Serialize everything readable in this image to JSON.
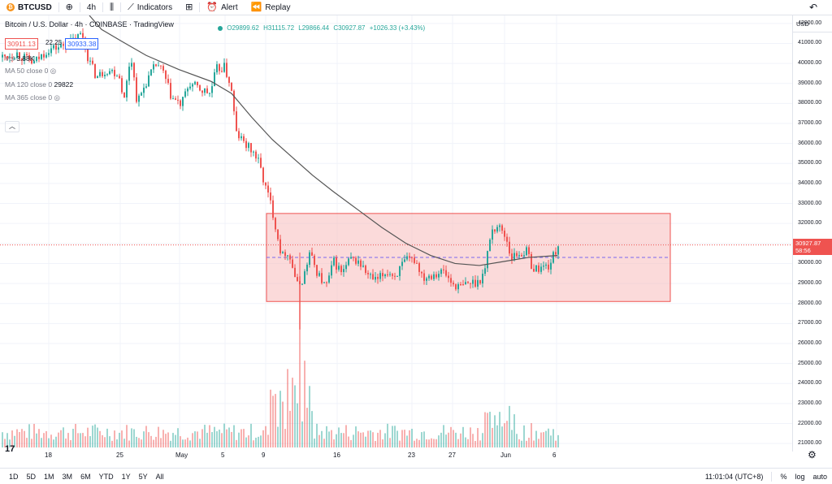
{
  "toolbar": {
    "coin_glyph": "₿",
    "symbol": "BTCUSD",
    "add_icon": "plus-circle-icon",
    "interval": "4h",
    "chart_style_icon": "candles-icon",
    "indicators": "Indicators",
    "layout_icon": "grid-icon",
    "alert": "Alert",
    "replay": "Replay"
  },
  "legend": {
    "title": "Bitcoin / U.S. Dollar · 4h · COINBASE · TradingView",
    "open": "O29899.62",
    "high": "H31115.72",
    "low": "L29866.44",
    "close": "C30927.87",
    "change": "+1026.33 (+3.43%)",
    "sell_price": "30911.13",
    "spread": "22.25",
    "buy_price": "30933.38",
    "vol_label": "Vol",
    "vol_value": "3.88K",
    "ma50": "MA 50 close 0",
    "ma120": "MA 120 close 0",
    "ma120_value": "29822",
    "ma365": "MA 365 close 0"
  },
  "price_axis": {
    "currency": "USD",
    "labels": [
      "42000.00",
      "41000.00",
      "40000.00",
      "39000.00",
      "38000.00",
      "37000.00",
      "36000.00",
      "35000.00",
      "34000.00",
      "33000.00",
      "32000.00",
      "31000.00",
      "30000.00",
      "29000.00",
      "28000.00",
      "27000.00",
      "26000.00",
      "25000.00",
      "24000.00",
      "23000.00",
      "22000.00",
      "21000.00"
    ],
    "last_price": "30927.87",
    "countdown": "58:56"
  },
  "time_axis": {
    "labels": [
      "18",
      "25",
      "May",
      "5",
      "9",
      "16",
      "23",
      "27",
      "Jun",
      "6"
    ]
  },
  "bottom_bar": {
    "ranges": [
      "1D",
      "5D",
      "1M",
      "3M",
      "6M",
      "YTD",
      "1Y",
      "5Y",
      "All"
    ],
    "clock": "11:01:04 (UTC+8)",
    "percent": "%",
    "log": "log",
    "auto": "auto"
  },
  "colors": {
    "up": "#26a69a",
    "down": "#ef5350",
    "ma_line": "#555555",
    "rect_fill": "#f8bcbc",
    "rect_stroke": "#ef5350",
    "dashed": "#7b68ee"
  },
  "chart_data": {
    "type": "candlestick",
    "symbol": "BTCUSD",
    "interval": "4h",
    "ylim": [
      20600,
      42400
    ],
    "last_price": 30927.87,
    "rectangle": {
      "top": 32500,
      "bottom": 28100
    },
    "midline": 30300,
    "price_path": [
      [
        0,
        40300
      ],
      [
        20,
        40500
      ],
      [
        40,
        40000
      ],
      [
        58,
        40700
      ],
      [
        70,
        40800
      ],
      [
        85,
        41000
      ],
      [
        100,
        41500
      ],
      [
        108,
        40200
      ],
      [
        118,
        39300
      ],
      [
        130,
        39700
      ],
      [
        145,
        39500
      ],
      [
        152,
        38200
      ],
      [
        160,
        40500
      ],
      [
        168,
        38000
      ],
      [
        178,
        39000
      ],
      [
        192,
        40000
      ],
      [
        200,
        39500
      ],
      [
        210,
        38300
      ],
      [
        222,
        37900
      ],
      [
        232,
        39000
      ],
      [
        245,
        38700
      ],
      [
        258,
        38500
      ],
      [
        265,
        39700
      ],
      [
        275,
        39800
      ],
      [
        283,
        38900
      ],
      [
        290,
        36500
      ],
      [
        300,
        36000
      ],
      [
        312,
        35500
      ],
      [
        318,
        35000
      ],
      [
        325,
        33900
      ],
      [
        333,
        32900
      ],
      [
        340,
        31500
      ],
      [
        346,
        30300
      ],
      [
        352,
        30700
      ],
      [
        358,
        30000
      ],
      [
        365,
        28900
      ],
      [
        372,
        29200
      ],
      [
        380,
        30500
      ],
      [
        390,
        29500
      ],
      [
        400,
        28800
      ],
      [
        410,
        30100
      ],
      [
        420,
        29500
      ],
      [
        430,
        30200
      ],
      [
        440,
        30100
      ],
      [
        452,
        29400
      ],
      [
        462,
        29100
      ],
      [
        475,
        29600
      ],
      [
        485,
        29400
      ],
      [
        498,
        30100
      ],
      [
        510,
        30200
      ],
      [
        520,
        29300
      ],
      [
        532,
        29500
      ],
      [
        545,
        29600
      ],
      [
        555,
        29000
      ],
      [
        565,
        28800
      ],
      [
        575,
        29000
      ],
      [
        588,
        29100
      ],
      [
        596,
        29700
      ],
      [
        603,
        31600
      ],
      [
        612,
        31900
      ],
      [
        622,
        31300
      ],
      [
        628,
        30300
      ],
      [
        638,
        30500
      ],
      [
        648,
        30600
      ],
      [
        655,
        29700
      ],
      [
        665,
        29800
      ],
      [
        675,
        29900
      ],
      [
        686,
        30900
      ]
    ],
    "ma_path": [
      [
        110,
        42400
      ],
      [
        125,
        41700
      ],
      [
        150,
        41100
      ],
      [
        180,
        40400
      ],
      [
        220,
        39700
      ],
      [
        260,
        39100
      ],
      [
        285,
        38500
      ],
      [
        310,
        37300
      ],
      [
        335,
        36200
      ],
      [
        360,
        35300
      ],
      [
        385,
        34400
      ],
      [
        410,
        33600
      ],
      [
        440,
        32700
      ],
      [
        470,
        31800
      ],
      [
        500,
        31000
      ],
      [
        530,
        30400
      ],
      [
        560,
        30000
      ],
      [
        590,
        29900
      ],
      [
        620,
        30100
      ],
      [
        650,
        30300
      ],
      [
        686,
        30400
      ]
    ],
    "volume": []
  }
}
